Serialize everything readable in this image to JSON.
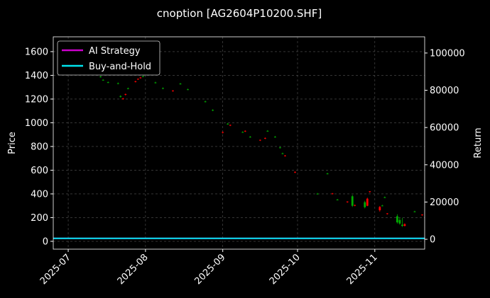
{
  "chart_data": {
    "type": "candlestick",
    "title": "cnoption [AG2604P10200.SHF]",
    "ylabel": "Price",
    "y2label": "Return",
    "xlim": [
      "2025-06-25",
      "2025-11-21"
    ],
    "xticks": [
      {
        "value": "2025-07-01",
        "label": "2025-07"
      },
      {
        "value": "2025-08-01",
        "label": "2025-08"
      },
      {
        "value": "2025-09-01",
        "label": "2025-09"
      },
      {
        "value": "2025-10-01",
        "label": "2025-10"
      },
      {
        "value": "2025-11-01",
        "label": "2025-11"
      }
    ],
    "ylim": [
      -66,
      1725
    ],
    "yticks": [
      0,
      200,
      400,
      600,
      800,
      1000,
      1200,
      1400,
      1600
    ],
    "y2lim": [
      -5300,
      108700
    ],
    "y2ticks": [
      0,
      20000,
      40000,
      60000,
      80000,
      100000
    ],
    "grid": true,
    "legend": "upper left",
    "up_color": "#ff0000",
    "down_color": "#00aa00",
    "candles": {
      "x": [
        "2025-07-14",
        "2025-07-15",
        "2025-07-17",
        "2025-07-21",
        "2025-07-22",
        "2025-07-23",
        "2025-07-24",
        "2025-07-25",
        "2025-07-28",
        "2025-07-29",
        "2025-07-30",
        "2025-07-31",
        "2025-08-05",
        "2025-08-08",
        "2025-08-12",
        "2025-08-15",
        "2025-08-18",
        "2025-08-25",
        "2025-08-28",
        "2025-09-01",
        "2025-09-03",
        "2025-09-04",
        "2025-09-09",
        "2025-09-10",
        "2025-09-12",
        "2025-09-16",
        "2025-09-18",
        "2025-09-19",
        "2025-09-22",
        "2025-09-24",
        "2025-09-25",
        "2025-09-26",
        "2025-09-30",
        "2025-10-09",
        "2025-10-13",
        "2025-10-15",
        "2025-10-17",
        "2025-10-21",
        "2025-10-23",
        "2025-10-24",
        "2025-10-28",
        "2025-10-29",
        "2025-10-30",
        "2025-11-03",
        "2025-11-04",
        "2025-11-05",
        "2025-11-06",
        "2025-11-10",
        "2025-11-11",
        "2025-11-12",
        "2025-11-13",
        "2025-11-17",
        "2025-11-20"
      ],
      "open": [
        1390,
        1362,
        1342,
        1333,
        1225,
        1200,
        1238,
        1290,
        1345,
        1368,
        1378,
        1392,
        1340,
        1292,
        1268,
        1330,
        1282,
        1180,
        1108,
        918,
        992,
        978,
        922,
        928,
        882,
        852,
        868,
        932,
        882,
        792,
        742,
        720,
        582,
        402,
        572,
        402,
        352,
        332,
        380,
        302,
        330,
        300,
        418,
        262,
        302,
        372,
        232,
        212,
        180,
        140,
        130,
        252,
        222
      ],
      "high": [
        1396,
        1368,
        1348,
        1340,
        1232,
        1210,
        1246,
        1297,
        1355,
        1375,
        1386,
        1398,
        1346,
        1298,
        1275,
        1336,
        1288,
        1186,
        1114,
        926,
        998,
        985,
        928,
        936,
        888,
        858,
        876,
        938,
        888,
        798,
        748,
        728,
        590,
        408,
        578,
        408,
        358,
        338,
        392,
        310,
        342,
        368,
        424,
        298,
        308,
        378,
        238,
        228,
        198,
        198,
        152,
        258,
        228
      ],
      "low": [
        1382,
        1355,
        1335,
        1326,
        1212,
        1195,
        1230,
        1283,
        1340,
        1362,
        1372,
        1385,
        1332,
        1284,
        1262,
        1322,
        1276,
        1172,
        1098,
        910,
        984,
        972,
        915,
        922,
        874,
        846,
        862,
        924,
        875,
        784,
        735,
        715,
        576,
        395,
        565,
        396,
        346,
        325,
        290,
        296,
        278,
        296,
        410,
        250,
        296,
        365,
        226,
        150,
        140,
        122,
        126,
        246,
        216
      ],
      "close": [
        1386,
        1360,
        1340,
        1330,
        1218,
        1205,
        1242,
        1288,
        1350,
        1370,
        1382,
        1390,
        1338,
        1288,
        1272,
        1326,
        1280,
        1176,
        1102,
        922,
        988,
        982,
        918,
        932,
        878,
        856,
        872,
        928,
        878,
        788,
        738,
        724,
        586,
        398,
        568,
        404,
        348,
        336,
        300,
        306,
        288,
        360,
        422,
        290,
        298,
        368,
        236,
        160,
        150,
        130,
        145,
        248,
        226
      ]
    },
    "series": [
      {
        "name": "AI Strategy",
        "color": "#cc00cc",
        "axis": "y2",
        "x": [
          "2025-06-25",
          "2025-11-21"
        ],
        "values": [
          500,
          500
        ]
      },
      {
        "name": "Buy-and-Hold",
        "color": "#00e5ee",
        "axis": "y2",
        "x": [
          "2025-06-25",
          "2025-11-21"
        ],
        "values": [
          500,
          500
        ]
      }
    ]
  }
}
